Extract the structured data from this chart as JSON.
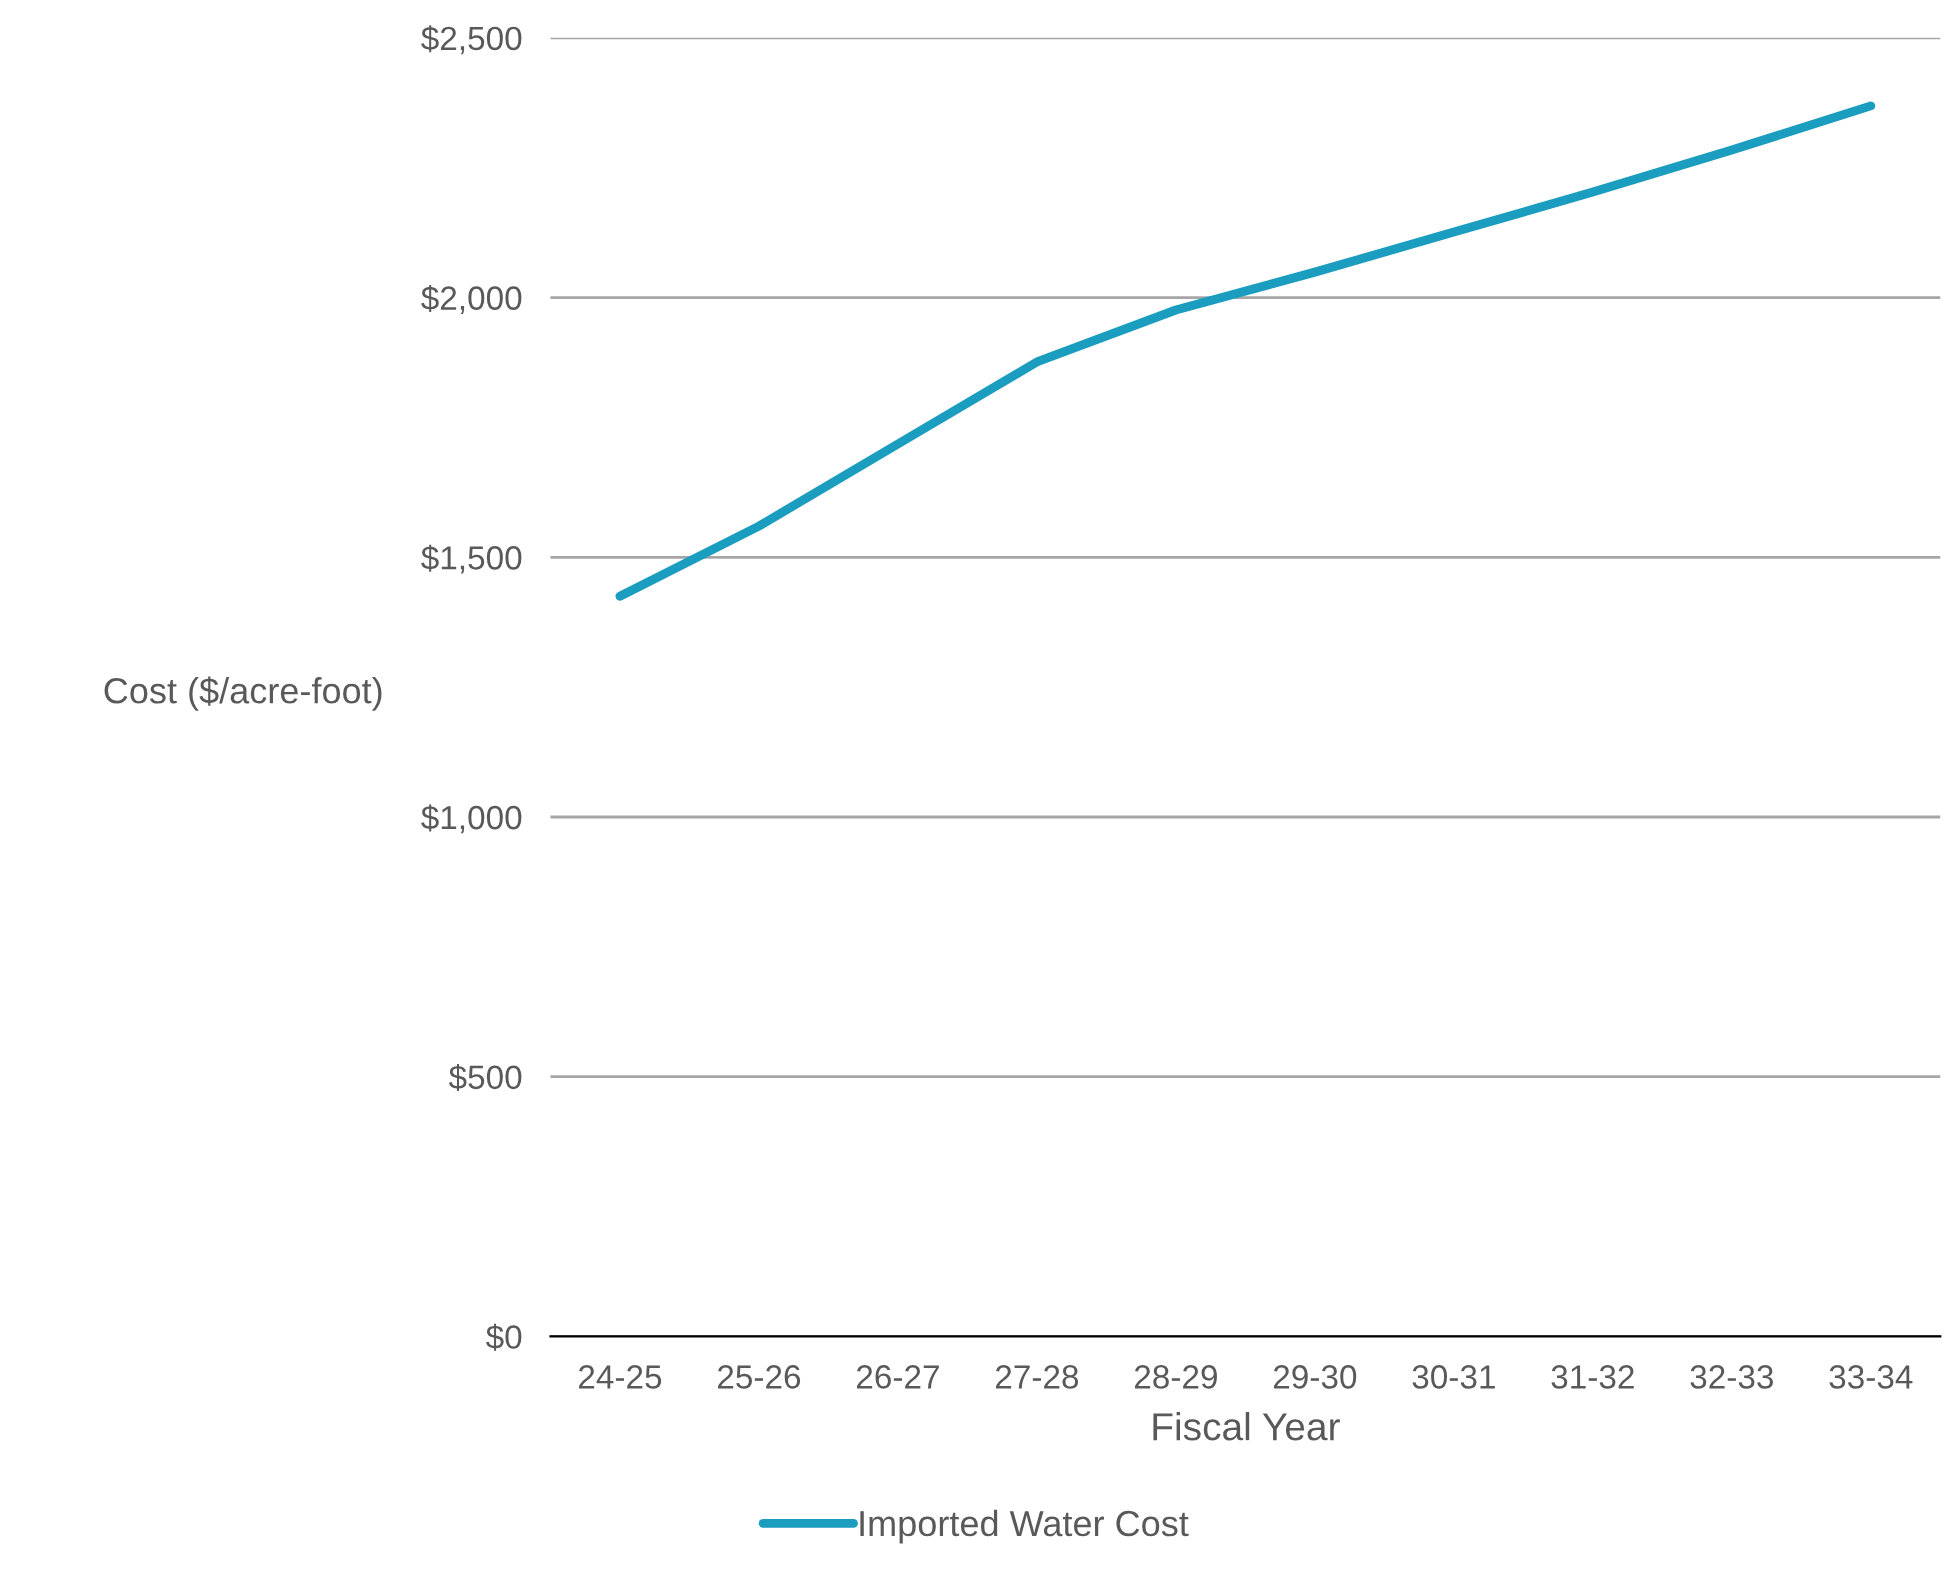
{
  "chart_data": {
    "type": "line",
    "xlabel": "Fiscal Year",
    "ylabel": "Cost ($/acre-foot)",
    "categories": [
      "24-25",
      "25-26",
      "26-27",
      "27-28",
      "28-29",
      "29-30",
      "30-31",
      "31-32",
      "32-33",
      "33-34"
    ],
    "series": [
      {
        "name": "Imported Water Cost",
        "color": "#1b9dbf",
        "values": [
          1425,
          1560,
          1718,
          1876,
          1976,
          2049,
          2126,
          2203,
          2284,
          2369
        ]
      }
    ],
    "ylim": [
      0,
      2500
    ],
    "yticks": [
      {
        "value": 0,
        "label": "$0"
      },
      {
        "value": 500,
        "label": "$500"
      },
      {
        "value": 1000,
        "label": "$1,000"
      },
      {
        "value": 1500,
        "label": "$1,500"
      },
      {
        "value": 2000,
        "label": "$2,000"
      },
      {
        "value": 2500,
        "label": "$2,500"
      }
    ],
    "grid": "y",
    "legend": "bottom",
    "marker": "none",
    "line_style": "solid"
  }
}
